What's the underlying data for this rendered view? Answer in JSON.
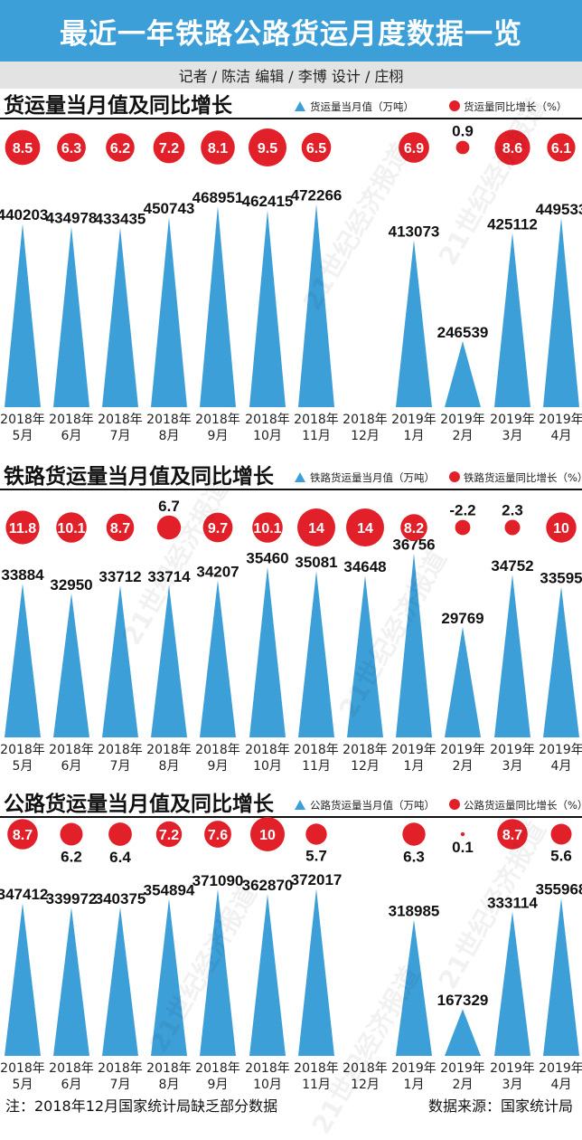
{
  "header": {
    "title": "最近一年铁路公路货运月度数据一览",
    "credits": "记者 / 陈洁   编辑 / 李博   设计 / 庄栩"
  },
  "watermark_text": "21世纪经济报道",
  "colors": {
    "title_bg": "#3d9fd8",
    "bar": "#3d9fd8",
    "dot": "#e2202a",
    "credit_bg": "#e3e3e3"
  },
  "months": [
    {
      "year": "2018年",
      "month": "5月"
    },
    {
      "year": "2018年",
      "month": "6月"
    },
    {
      "year": "2018年",
      "month": "7月"
    },
    {
      "year": "2018年",
      "month": "8月"
    },
    {
      "year": "2018年",
      "month": "9月"
    },
    {
      "year": "2018年",
      "month": "10月"
    },
    {
      "year": "2018年",
      "month": "11月"
    },
    {
      "year": "2018年",
      "month": "12月"
    },
    {
      "year": "2019年",
      "month": "1月"
    },
    {
      "year": "2019年",
      "month": "2月"
    },
    {
      "year": "2019年",
      "month": "3月"
    },
    {
      "year": "2019年",
      "month": "4月"
    }
  ],
  "chart_data": [
    {
      "type": "bar",
      "title": "货运量当月值及同比增长",
      "legend": {
        "value": "货运量当月值（万吨）",
        "growth": "货运量同比增长（%）"
      },
      "categories": [
        "2018年5月",
        "2018年6月",
        "2018年7月",
        "2018年8月",
        "2018年9月",
        "2018年10月",
        "2018年11月",
        "2018年12月",
        "2019年1月",
        "2019年2月",
        "2019年3月",
        "2019年4月"
      ],
      "series": [
        {
          "name": "货运量当月值（万吨）",
          "values": [
            440203,
            434978,
            433435,
            450743,
            468951,
            462415,
            472266,
            null,
            413073,
            246539,
            425112,
            449533
          ]
        },
        {
          "name": "货运量同比增长（%）",
          "values": [
            "8.5",
            "6.3",
            "6.2",
            "7.2",
            "8.1",
            "9.5",
            "6.5",
            null,
            "6.9",
            "0.9",
            "8.6",
            "6.1"
          ]
        }
      ]
    },
    {
      "type": "bar",
      "title": "铁路货运量当月值及同比增长",
      "legend": {
        "value": "铁路货运量当月值（万吨）",
        "growth": "铁路货运量同比增长（%）"
      },
      "categories": [
        "2018年5月",
        "2018年6月",
        "2018年7月",
        "2018年8月",
        "2018年9月",
        "2018年10月",
        "2018年11月",
        "2018年12月",
        "2019年1月",
        "2019年2月",
        "2019年3月",
        "2019年4月"
      ],
      "series": [
        {
          "name": "铁路货运量当月值（万吨）",
          "values": [
            33884,
            32950,
            33712,
            33714,
            34207,
            35460,
            35081,
            34648,
            36756,
            29769,
            34752,
            33595
          ]
        },
        {
          "name": "铁路货运量同比增长（%）",
          "values": [
            "11.8",
            "10.1",
            "8.7",
            "6.7",
            "9.7",
            "10.1",
            "14",
            "14",
            "8.2",
            "-2.2",
            "2.3",
            "10"
          ]
        }
      ]
    },
    {
      "type": "bar",
      "title": "公路货运量当月值及同比增长",
      "legend": {
        "value": "公路货运量当月值（万吨）",
        "growth": "公路货运量同比增长（%）"
      },
      "categories": [
        "2018年5月",
        "2018年6月",
        "2018年7月",
        "2018年8月",
        "2018年9月",
        "2018年10月",
        "2018年11月",
        "2018年12月",
        "2019年1月",
        "2019年2月",
        "2019年3月",
        "2019年4月"
      ],
      "series": [
        {
          "name": "公路货运量当月值（万吨）",
          "values": [
            347412,
            339972,
            340375,
            354894,
            371090,
            362870,
            372017,
            null,
            318985,
            167329,
            333114,
            355968
          ]
        },
        {
          "name": "公路货运量同比增长（%）",
          "values": [
            "8.7",
            "6.2",
            "6.4",
            "7.2",
            "7.6",
            "10",
            "5.7",
            null,
            "6.3",
            "0.1",
            "8.7",
            "5.6"
          ]
        }
      ]
    }
  ],
  "footer": {
    "note": "注：2018年12月国家统计局缺乏部分数据",
    "source": "数据来源：国家统计局"
  }
}
